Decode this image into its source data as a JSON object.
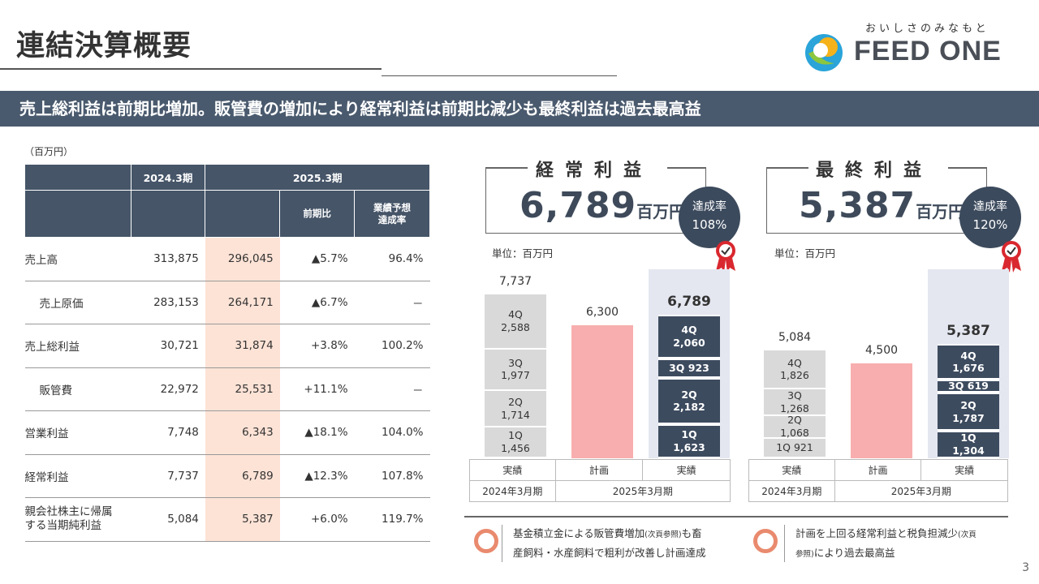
{
  "title": "連結決算概要",
  "logo": {
    "tagline": "おいしさのみなもと",
    "name": "FEED ONE"
  },
  "banner": "売上総利益は前期比増加。販管費の増加により経常利益は前期比減少も最終利益は過去最高益",
  "table": {
    "unit": "（百万円）",
    "col_2024": "2024.3期",
    "col_2025": "2025.3期",
    "col_yoy": "前期比",
    "col_achieve_1": "業績予想",
    "col_achieve_2": "達成率",
    "rows": [
      {
        "label": "売上高",
        "v2024": "313,875",
        "v2025": "296,045",
        "yoy": "▲5.7%",
        "ach": "96.4%"
      },
      {
        "label": "売上原価",
        "v2024": "283,153",
        "v2025": "264,171",
        "yoy": "▲6.7%",
        "ach": "－"
      },
      {
        "label": "売上総利益",
        "v2024": "30,721",
        "v2025": "31,874",
        "yoy": "+3.8%",
        "ach": "100.2%"
      },
      {
        "label": "販管費",
        "v2024": "22,972",
        "v2025": "25,531",
        "yoy": "+11.1%",
        "ach": "－"
      },
      {
        "label": "営業利益",
        "v2024": "7,748",
        "v2025": "6,343",
        "yoy": "▲18.1%",
        "ach": "104.0%"
      },
      {
        "label": "経常利益",
        "v2024": "7,737",
        "v2025": "6,789",
        "yoy": "▲12.3%",
        "ach": "107.8%"
      },
      {
        "label_1": "親会社株主に帰属",
        "label_2": "する当期純利益",
        "v2024": "5,084",
        "v2025": "5,387",
        "yoy": "+6.0%",
        "ach": "119.7%"
      }
    ]
  },
  "ordinary": {
    "label": "経常利益",
    "value": "6,789",
    "unit": "百万円",
    "badge_1": "達成率",
    "badge_2": "108%",
    "chart_unit": "単位：百万円",
    "prev_total": "7,737",
    "prev_q": [
      {
        "q": "4Q",
        "v": "2,588"
      },
      {
        "q": "3Q",
        "v": "1,977"
      },
      {
        "q": "2Q",
        "v": "1,714"
      },
      {
        "q": "1Q",
        "v": "1,456"
      }
    ],
    "plan": "6,300",
    "cur_total": "6,789",
    "cur_q": [
      {
        "q": "4Q",
        "v": "2,060"
      },
      {
        "q": "3Q",
        "v": "923"
      },
      {
        "q": "2Q",
        "v": "2,182"
      },
      {
        "q": "1Q",
        "v": "1,623"
      }
    ],
    "x_actual": "実績",
    "x_plan": "計画",
    "x_actual2": "実績",
    "period_prev": "2024年3月期",
    "period_cur": "2025年3月期"
  },
  "net": {
    "label": "最終利益",
    "value": "5,387",
    "unit": "百万円",
    "badge_1": "達成率",
    "badge_2": "120%",
    "chart_unit": "単位：百万円",
    "prev_total": "5,084",
    "prev_q": [
      {
        "q": "4Q",
        "v": "1,826"
      },
      {
        "q": "3Q",
        "v": "1,268"
      },
      {
        "q": "2Q",
        "v": "1,068"
      },
      {
        "q": "1Q",
        "v": "921"
      }
    ],
    "plan": "4,500",
    "cur_total": "5,387",
    "cur_q": [
      {
        "q": "4Q",
        "v": "1,676"
      },
      {
        "q": "3Q",
        "v": "619"
      },
      {
        "q": "2Q",
        "v": "1,787"
      },
      {
        "q": "1Q",
        "v": "1,304"
      }
    ],
    "x_actual": "実績",
    "x_plan": "計画",
    "x_actual2": "実績",
    "period_prev": "2024年3月期",
    "period_cur": "2025年3月期"
  },
  "notes": {
    "left_1a": "基金積立金による販管費増加",
    "left_1b": "(次頁参照)",
    "left_1c": "も畜",
    "left_2": "産飼料・水産飼料で粗利が改善し計画達成",
    "right_1a": "計画を上回る経常利益と税負担減少",
    "right_1b": "(次頁",
    "right_2a": "参照)",
    "right_2b": "により過去最高益"
  },
  "page": "3",
  "colors": {
    "navy": "#465568",
    "highlight": "#fde3d6",
    "plan": "#f8aeae",
    "accent": "#e98a6e"
  }
}
